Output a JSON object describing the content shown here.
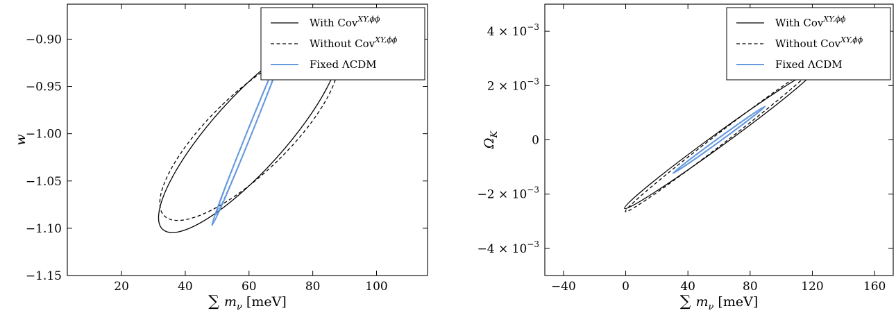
{
  "chart_data": [
    {
      "type": "line",
      "title": "",
      "xlabel": "∑ m",
      "xlabel_sub": "ν",
      "xlabel_unit": "[meV]",
      "ylabel": "w",
      "xlim": [
        3,
        116
      ],
      "ylim": [
        -1.15,
        -0.863
      ],
      "xticks": [
        20,
        40,
        60,
        80,
        100
      ],
      "xtick_labels": [
        "20",
        "40",
        "60",
        "80",
        "100"
      ],
      "yticks": [
        -1.15,
        -1.1,
        -1.05,
        -1.0,
        -0.95,
        -0.9
      ],
      "ytick_labels": [
        "−1.15",
        "−1.10",
        "−1.05",
        "−1.00",
        "−0.95",
        "−0.90"
      ],
      "legend_position": "top-right",
      "grid": false,
      "series": [
        {
          "name": "With Cov",
          "name_sup": "XY,ϕϕ",
          "style": "solid",
          "color": "#000000",
          "ellipse": {
            "cx": 60,
            "cy": -1.0,
            "major": 0.95,
            "minor": 0.27,
            "angle_deg": -48
          }
        },
        {
          "name": "Without Cov",
          "name_sup": "XY,ϕϕ",
          "style": "dashed",
          "color": "#000000",
          "ellipse": {
            "cx": 60,
            "cy": -1.0,
            "major": 0.87,
            "minor": 0.29,
            "angle_deg": -44
          }
        },
        {
          "name": "Fixed ΛCDM",
          "style": "solid",
          "color": "#6699dd",
          "ellipse": {
            "cx": 60,
            "cy": -1.0,
            "major": 0.73,
            "minor": 0.018,
            "angle_deg": -68
          }
        },
        {
          "name": "",
          "style": "dashed",
          "color": "#6699dd",
          "ellipse": {
            "cx": 60,
            "cy": -1.0,
            "major": 0.64,
            "minor": 0.018,
            "angle_deg": -68
          }
        }
      ]
    },
    {
      "type": "line",
      "title": "",
      "xlabel": "∑ m",
      "xlabel_sub": "ν",
      "xlabel_unit": "[meV]",
      "ylabel": "Ω",
      "ylabel_sub": "K",
      "xlim": [
        -52,
        172
      ],
      "ylim": [
        -0.005,
        0.005
      ],
      "xticks": [
        -40,
        0,
        40,
        80,
        120,
        160
      ],
      "xtick_labels": [
        "−40",
        "0",
        "40",
        "80",
        "120",
        "160"
      ],
      "yticks": [
        -0.004,
        -0.002,
        0,
        0.002,
        0.004
      ],
      "ytick_labels": [
        "−4 × 10",
        "−2 × 10",
        "0",
        "2 × 10",
        "4 × 10"
      ],
      "ytick_exponent": "−3",
      "legend_position": "top-right",
      "grid": false,
      "series": [
        {
          "name": "With Cov",
          "name_sup": "XY,ϕϕ",
          "style": "solid",
          "color": "#000000",
          "ellipse": {
            "cx": 60,
            "cy": 0,
            "major": 0.86,
            "minor": 0.048,
            "angle_deg": -36
          }
        },
        {
          "name": "Without Cov",
          "name_sup": "XY,ϕϕ",
          "style": "dashed",
          "color": "#000000",
          "ellipse": {
            "cx": 60,
            "cy": 0,
            "major": 0.87,
            "minor": 0.04,
            "angle_deg": -37.5
          }
        },
        {
          "name": "Fixed ΛCDM",
          "style": "solid",
          "color": "#6699dd",
          "ellipse": {
            "cx": 60,
            "cy": 0,
            "major": 0.42,
            "minor": 0.012,
            "angle_deg": -36
          }
        },
        {
          "name": "",
          "style": "dashed",
          "color": "#6699dd",
          "ellipse": {
            "cx": 60,
            "cy": 0,
            "major": 0.4,
            "minor": 0.012,
            "angle_deg": -36
          }
        }
      ]
    }
  ]
}
